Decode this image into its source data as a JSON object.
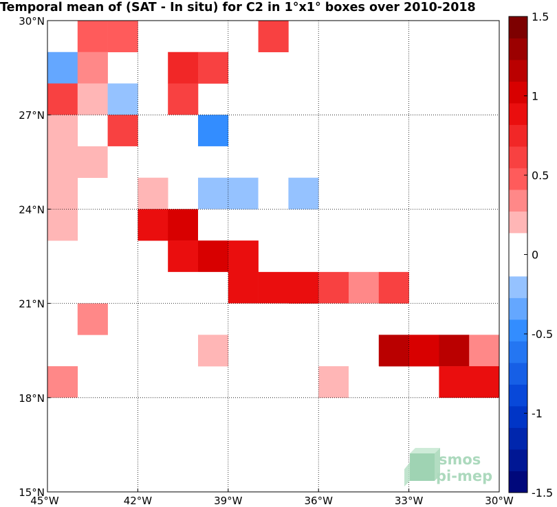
{
  "chart_data": {
    "type": "heatmap",
    "title": "Temporal mean of (SAT - In situ) for C2 in 1°x1° boxes over 2010-2018",
    "xlabel": "",
    "ylabel": "",
    "x_ticks": [
      {
        "value": -45,
        "label": "45°W"
      },
      {
        "value": -42,
        "label": "42°W"
      },
      {
        "value": -39,
        "label": "39°W"
      },
      {
        "value": -36,
        "label": "36°W"
      },
      {
        "value": -33,
        "label": "33°W"
      },
      {
        "value": -30,
        "label": "30°W"
      }
    ],
    "y_ticks": [
      {
        "value": 15,
        "label": "15°N"
      },
      {
        "value": 18,
        "label": "18°N"
      },
      {
        "value": 21,
        "label": "21°N"
      },
      {
        "value": 24,
        "label": "24°N"
      },
      {
        "value": 27,
        "label": "27°N"
      },
      {
        "value": 30,
        "label": "30°N"
      }
    ],
    "xlim": [
      -45,
      -30
    ],
    "ylim": [
      15,
      30
    ],
    "grid": true,
    "grid_style": "dotted",
    "colormap": {
      "name": "blue-white-red",
      "range": [
        -1.5,
        1.5
      ],
      "levels": 22,
      "tick_values": [
        -1.5,
        -1,
        -0.5,
        0,
        0.5,
        1,
        1.5
      ],
      "tick_labels": [
        "-1.5",
        "-1",
        "-0.5",
        "0",
        "0.5",
        "1",
        "1.5"
      ]
    },
    "cells": [
      {
        "lon": -44.5,
        "lat": 29.5,
        "value": 0.0
      },
      {
        "lon": -43.5,
        "lat": 29.5,
        "value": 0.5
      },
      {
        "lon": -42.5,
        "lat": 29.5,
        "value": 0.5
      },
      {
        "lon": -37.5,
        "lat": 29.5,
        "value": 0.6
      },
      {
        "lon": -34.5,
        "lat": 29.5,
        "value": -0.1
      },
      {
        "lon": -44.5,
        "lat": 28.5,
        "value": -0.3
      },
      {
        "lon": -43.5,
        "lat": 28.5,
        "value": 0.35
      },
      {
        "lon": -40.5,
        "lat": 28.5,
        "value": 0.8
      },
      {
        "lon": -39.5,
        "lat": 28.5,
        "value": 0.6
      },
      {
        "lon": -44.5,
        "lat": 27.5,
        "value": 0.55
      },
      {
        "lon": -43.5,
        "lat": 27.5,
        "value": 0.25
      },
      {
        "lon": -42.5,
        "lat": 27.5,
        "value": -0.2
      },
      {
        "lon": -40.5,
        "lat": 27.5,
        "value": 0.6
      },
      {
        "lon": -44.5,
        "lat": 26.5,
        "value": 0.25
      },
      {
        "lon": -42.5,
        "lat": 26.5,
        "value": 0.55
      },
      {
        "lon": -40.5,
        "lat": 26.5,
        "value": -0.1
      },
      {
        "lon": -39.5,
        "lat": 26.5,
        "value": -0.45
      },
      {
        "lon": -44.5,
        "lat": 25.5,
        "value": 0.25
      },
      {
        "lon": -43.5,
        "lat": 25.5,
        "value": 0.25
      },
      {
        "lon": -42.5,
        "lat": 25.5,
        "value": 0.12
      },
      {
        "lon": -39.5,
        "lat": 25.5,
        "value": -0.1
      },
      {
        "lon": -38.5,
        "lat": 25.5,
        "value": -0.1
      },
      {
        "lon": -37.5,
        "lat": 25.5,
        "value": -0.1
      },
      {
        "lon": -36.5,
        "lat": 25.5,
        "value": -0.1
      },
      {
        "lon": -44.5,
        "lat": 24.5,
        "value": 0.25
      },
      {
        "lon": -42.5,
        "lat": 24.5,
        "value": 0.12
      },
      {
        "lon": -41.5,
        "lat": 24.5,
        "value": 0.25
      },
      {
        "lon": -39.5,
        "lat": 24.5,
        "value": -0.2
      },
      {
        "lon": -38.5,
        "lat": 24.5,
        "value": -0.2
      },
      {
        "lon": -37.5,
        "lat": 24.5,
        "value": -0.1
      },
      {
        "lon": -36.5,
        "lat": 24.5,
        "value": -0.2
      },
      {
        "lon": -44.5,
        "lat": 23.5,
        "value": 0.25
      },
      {
        "lon": -41.5,
        "lat": 23.5,
        "value": 0.85
      },
      {
        "lon": -40.5,
        "lat": 23.5,
        "value": 1.0
      },
      {
        "lon": -39.5,
        "lat": 23.5,
        "value": -0.1
      },
      {
        "lon": -40.5,
        "lat": 22.5,
        "value": 0.9
      },
      {
        "lon": -39.5,
        "lat": 22.5,
        "value": 1.0
      },
      {
        "lon": -38.5,
        "lat": 22.5,
        "value": 0.85
      },
      {
        "lon": -36.5,
        "lat": 22.5,
        "value": 0.12
      },
      {
        "lon": -35.5,
        "lat": 22.5,
        "value": -0.1
      },
      {
        "lon": -40.5,
        "lat": 21.5,
        "value": 0.12
      },
      {
        "lon": -39.5,
        "lat": 21.5,
        "value": -0.1
      },
      {
        "lon": -38.5,
        "lat": 21.5,
        "value": 0.85
      },
      {
        "lon": -37.5,
        "lat": 21.5,
        "value": 0.9
      },
      {
        "lon": -36.5,
        "lat": 21.5,
        "value": 0.9
      },
      {
        "lon": -35.5,
        "lat": 21.5,
        "value": 0.55
      },
      {
        "lon": -34.5,
        "lat": 21.5,
        "value": 0.3
      },
      {
        "lon": -33.5,
        "lat": 21.5,
        "value": 0.55
      },
      {
        "lon": -43.5,
        "lat": 20.5,
        "value": 0.3
      },
      {
        "lon": -41.5,
        "lat": 20.5,
        "value": 0.12
      },
      {
        "lon": -39.5,
        "lat": 20.5,
        "value": 0.12
      },
      {
        "lon": -38.5,
        "lat": 20.5,
        "value": 0.12
      },
      {
        "lon": -37.5,
        "lat": 20.5,
        "value": 0.12
      },
      {
        "lon": -35.5,
        "lat": 20.5,
        "value": 0.12
      },
      {
        "lon": -34.5,
        "lat": 20.5,
        "value": 0.12
      },
      {
        "lon": -30.5,
        "lat": 20.5,
        "value": 0.12
      },
      {
        "lon": -39.5,
        "lat": 19.5,
        "value": 0.25
      },
      {
        "lon": -33.5,
        "lat": 19.5,
        "value": 1.1
      },
      {
        "lon": -32.5,
        "lat": 19.5,
        "value": 1.0
      },
      {
        "lon": -31.5,
        "lat": 19.5,
        "value": 1.1
      },
      {
        "lon": -30.5,
        "lat": 19.5,
        "value": 0.3
      },
      {
        "lon": -44.5,
        "lat": 18.5,
        "value": 0.3
      },
      {
        "lon": -41.5,
        "lat": 18.5,
        "value": 0.12
      },
      {
        "lon": -35.5,
        "lat": 18.5,
        "value": 0.25
      },
      {
        "lon": -34.5,
        "lat": 18.5,
        "value": 0.12
      },
      {
        "lon": -31.5,
        "lat": 18.5,
        "value": 0.9
      },
      {
        "lon": -30.5,
        "lat": 18.5,
        "value": 0.9
      },
      {
        "lon": -44.5,
        "lat": 17.5,
        "value": 0.12
      }
    ]
  },
  "logo": {
    "line1": "smos",
    "line2": "pi-mep"
  },
  "colors": {
    "grid": "#000000",
    "logo": "#9ed3b2"
  }
}
